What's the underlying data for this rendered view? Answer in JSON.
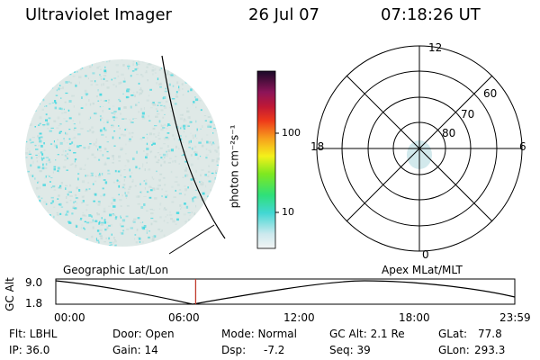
{
  "header": {
    "title": "Ultraviolet Imager",
    "date": "26 Jul 07",
    "time": "07:18:26 UT"
  },
  "colorbar": {
    "label": "photon cm⁻²s⁻¹",
    "ticks": [
      "100",
      "10"
    ]
  },
  "polar_plot": {
    "mlt_labels": {
      "top": "12",
      "left": "18",
      "right": "6",
      "bottom": "0"
    },
    "lat_labels": [
      "60",
      "70",
      "80"
    ]
  },
  "timeline": {
    "left_title": "Geographic Lat/Lon",
    "right_title": "Apex MLat/MLT",
    "y_axis_label": "GC Alt",
    "y_ticks": [
      "9.0",
      "1.8"
    ],
    "x_ticks": [
      "00:00",
      "06:00",
      "12:00",
      "18:00",
      "23:59"
    ],
    "current_marker_time": "07:18:26"
  },
  "status": {
    "flt": "Flt: LBHL",
    "ip": "IP: 36.0",
    "door": "Door: Open",
    "gain": "Gain: 14",
    "mode": "Mode: Normal",
    "dsp_label": "Dsp:",
    "dsp_value": "-7.2",
    "gc_alt": "GC Alt: 2.1 Re",
    "seq": "Seq: 39",
    "glat_label": "GLat:",
    "glat_value": "77.8",
    "glon_label": "GLon:",
    "glon_value": "293.3"
  },
  "colors": {
    "emission": "#37d7e0",
    "background_haze": "#d8e4e2",
    "marker": "#c0392b"
  }
}
